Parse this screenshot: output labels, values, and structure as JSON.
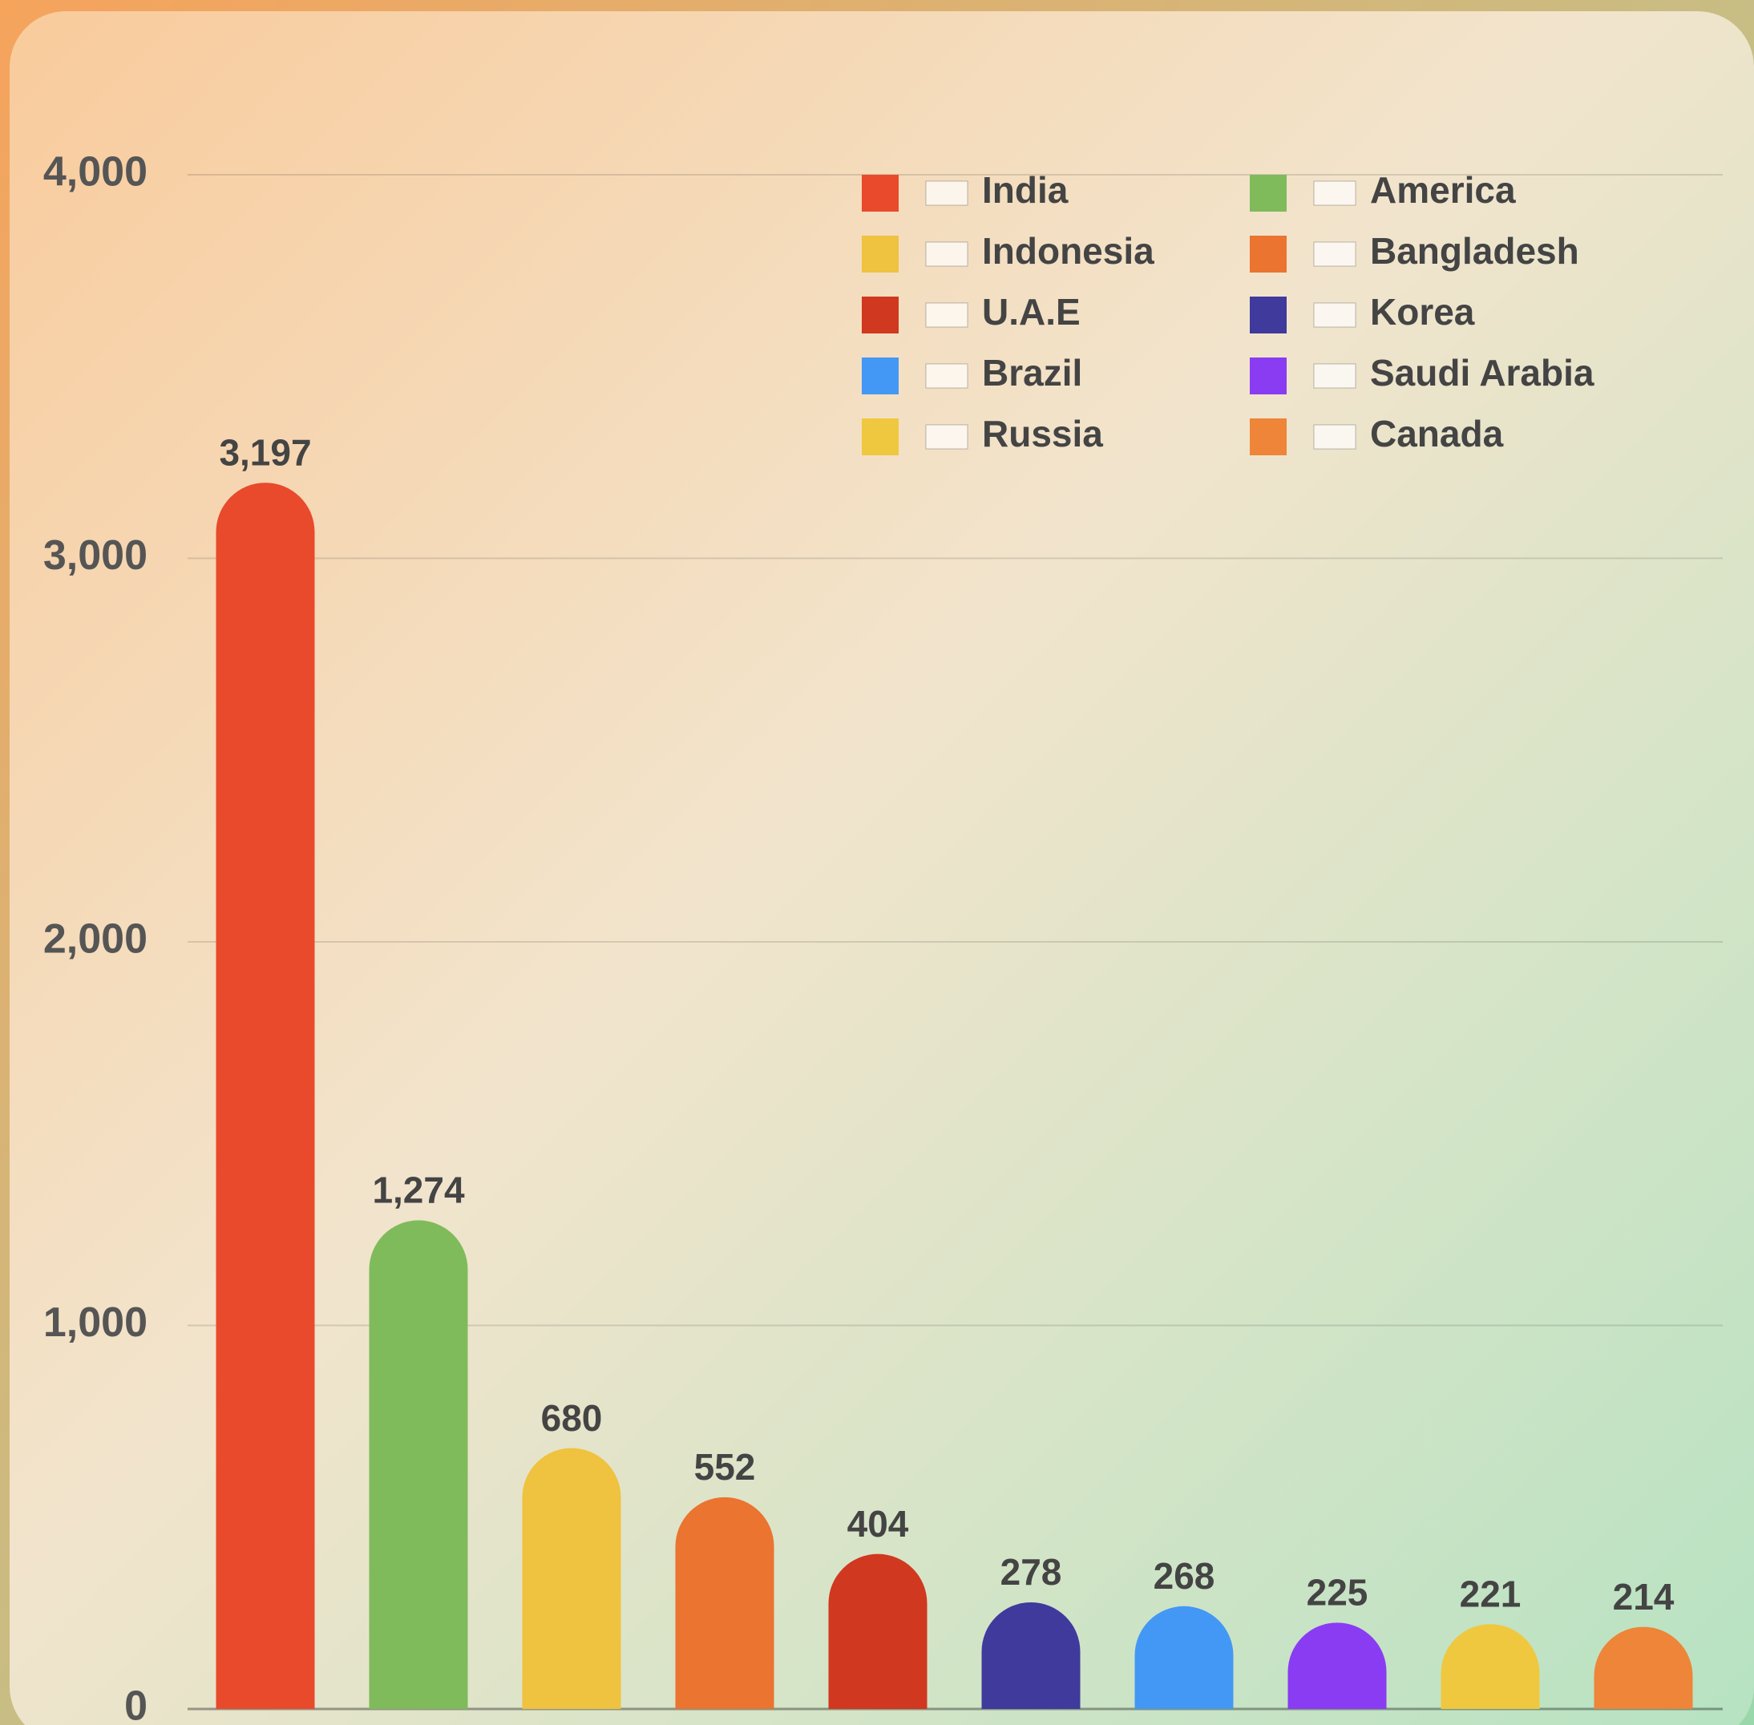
{
  "chart_data": {
    "type": "bar",
    "categories": [
      "India",
      "America",
      "Indonesia",
      "Bangladesh",
      "U.A.E",
      "Korea",
      "Brazil",
      "Saudi Arabia",
      "Russia",
      "Canada"
    ],
    "values": [
      3197,
      1274,
      680,
      552,
      404,
      278,
      268,
      225,
      221,
      214
    ],
    "value_labels": [
      "3,197",
      "1,274",
      "680",
      "552",
      "404",
      "278",
      "268",
      "225",
      "221",
      "214"
    ],
    "colors": [
      "#e84a2b",
      "#7fbb5a",
      "#efc23f",
      "#ea7430",
      "#d0381f",
      "#3f3a9c",
      "#4398f5",
      "#8a3cf2",
      "#efc83f",
      "#ee8538"
    ],
    "ylim": [
      0,
      4000
    ],
    "yticks": [
      0,
      {
        "value": 1000,
        "label": "1,000"
      },
      {
        "value": 2000,
        "label": "2,000"
      },
      {
        "value": 3000,
        "label": "3,000"
      },
      {
        "value": 4000,
        "label": "4,000"
      }
    ],
    "grid": true,
    "legend": "upper right"
  }
}
